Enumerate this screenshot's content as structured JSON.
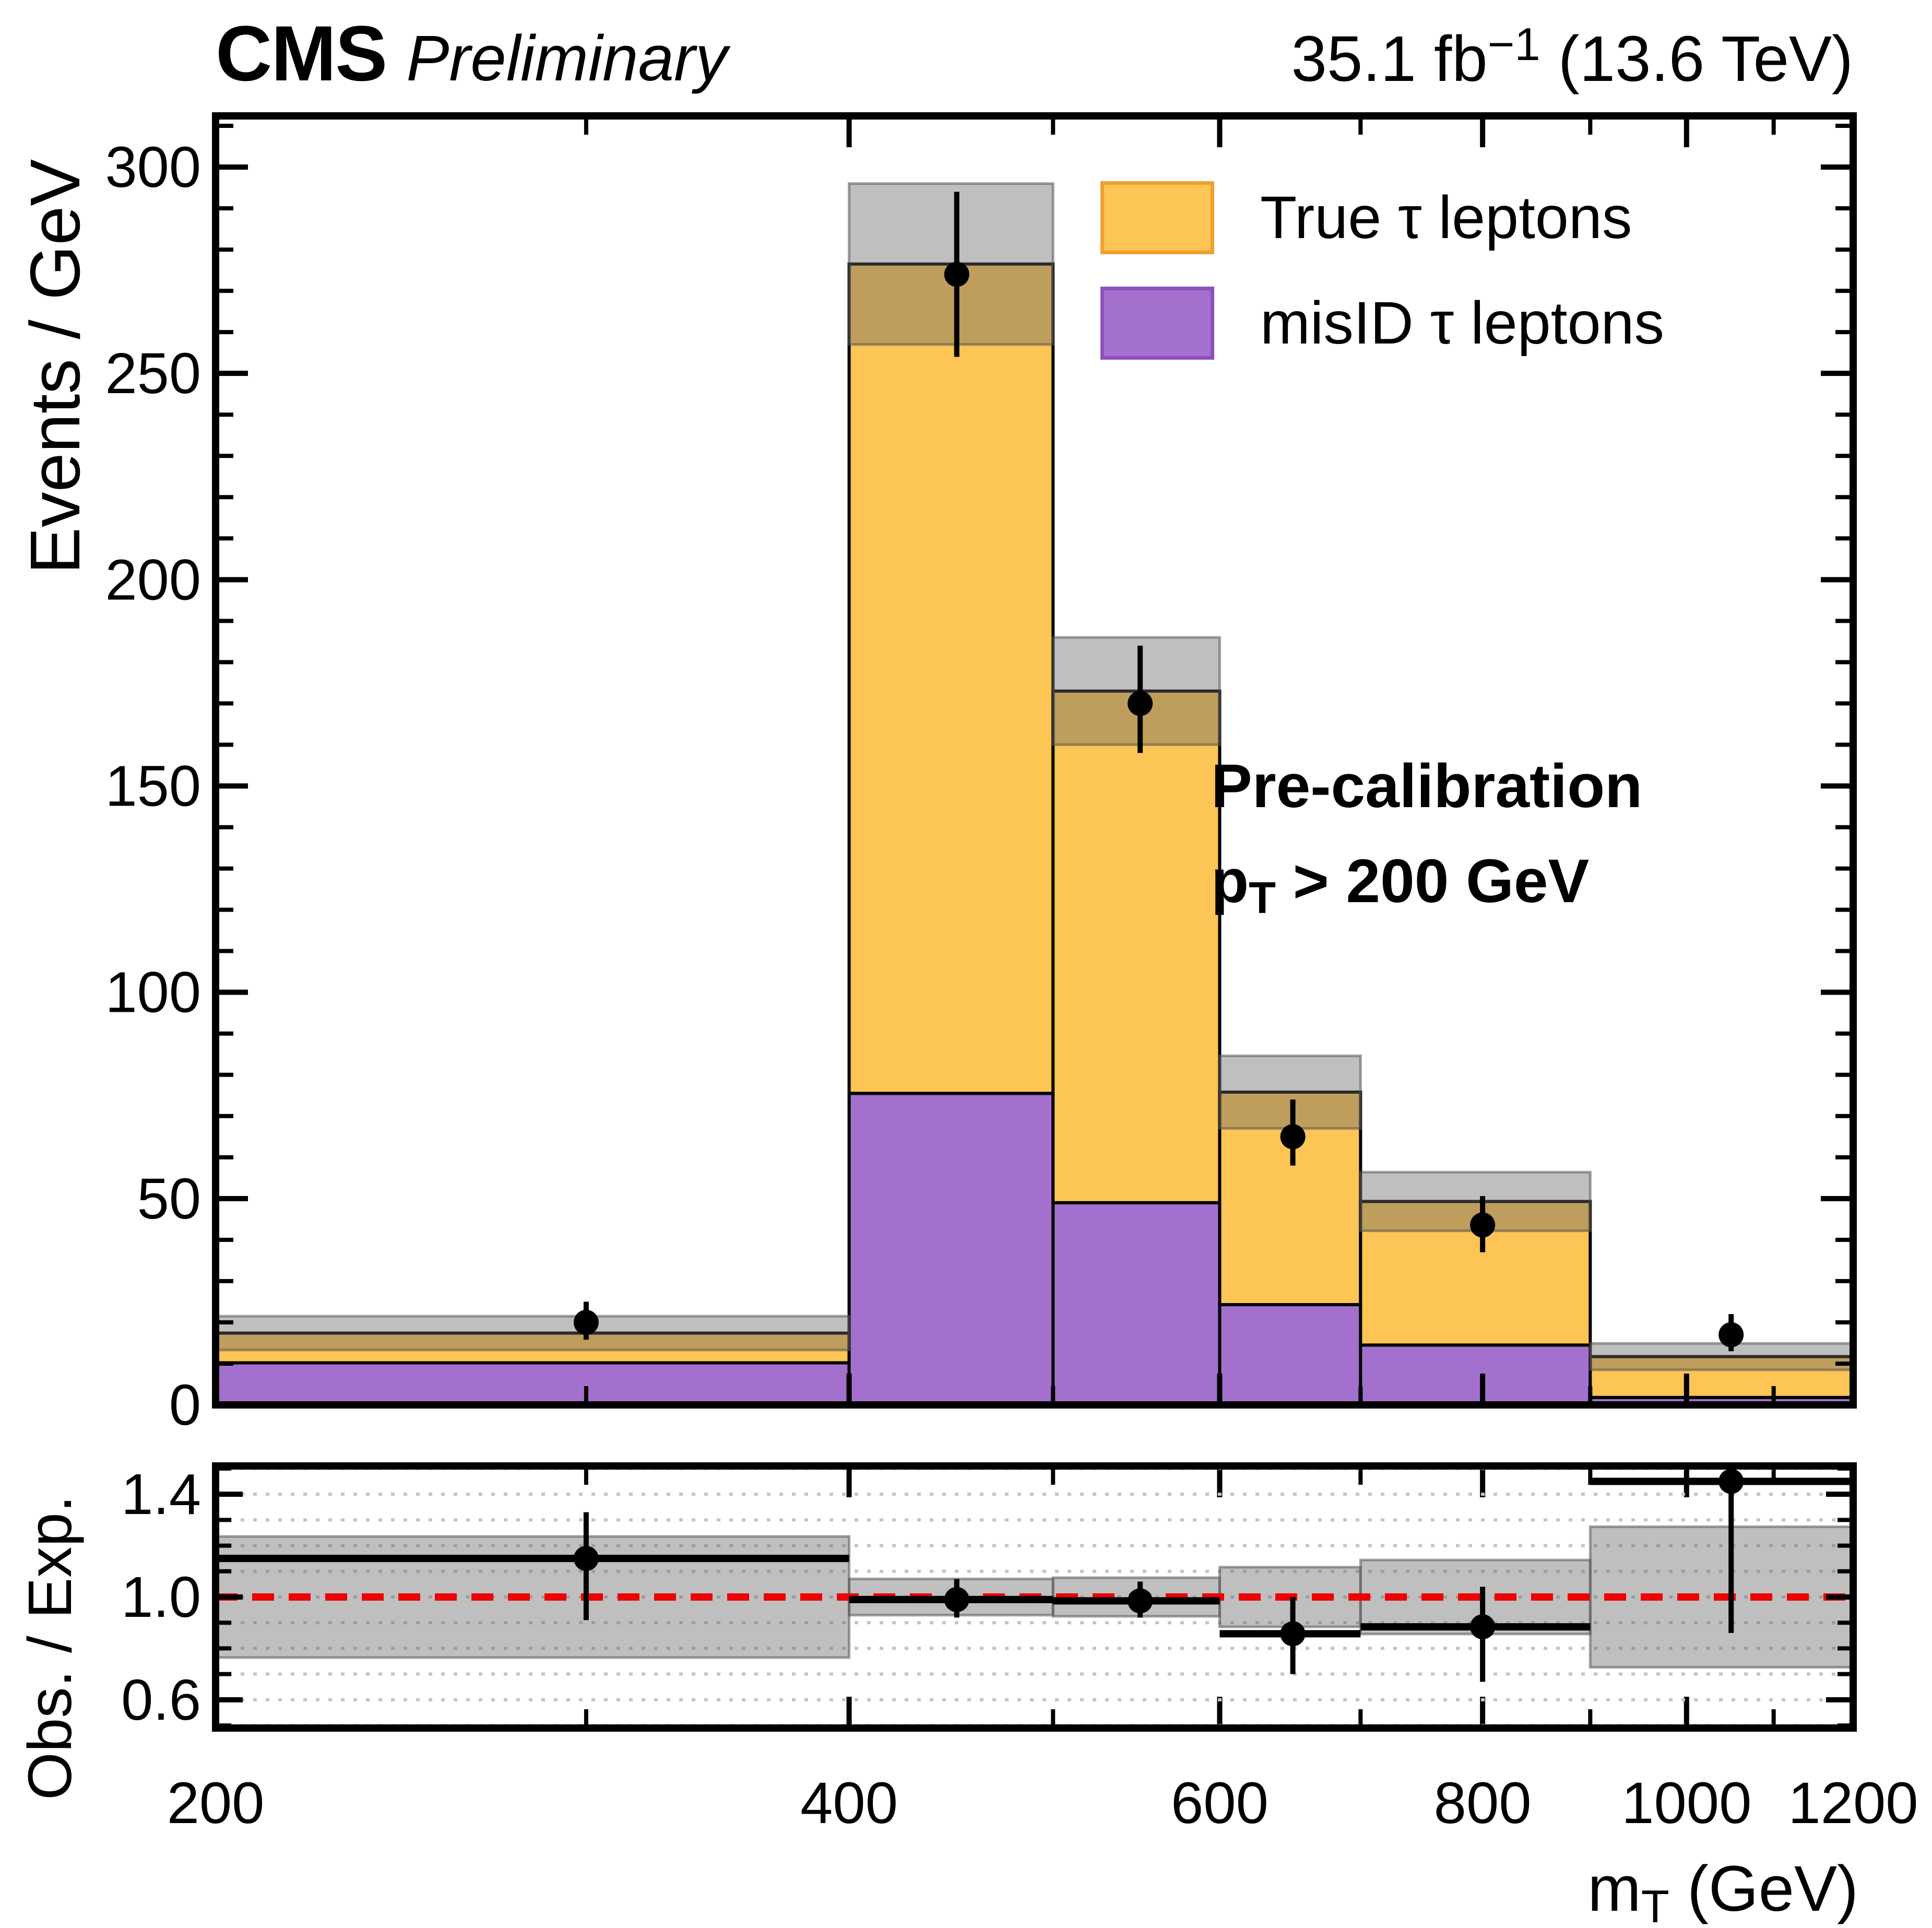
{
  "header": {
    "experiment": "CMS",
    "preliminary": "Preliminary",
    "lumi_prefix": "35.1 fb",
    "lumi_sup": "−1",
    "energy_suffix": " (13.6 TeV)"
  },
  "chart_data": {
    "type": "bar",
    "subtype": "stacked-histogram-with-ratio",
    "x_axis": {
      "label_main": "m",
      "label_sub": "T",
      "label_suffix": " (GeV)",
      "scale": "log",
      "range": [
        200,
        1200
      ],
      "major_ticks": [
        200,
        400,
        600,
        800,
        1000,
        1200
      ],
      "minor_ticks": [
        300,
        500,
        700,
        900,
        1100
      ]
    },
    "y_main": {
      "label": "Events / GeV",
      "range": [
        0,
        312.4
      ],
      "major_ticks": [
        0,
        50,
        100,
        150,
        200,
        250,
        300
      ],
      "minor_step": 10,
      "grid": false
    },
    "y_ratio": {
      "label": "Obs. / Exp.",
      "range": [
        0.49,
        1.51
      ],
      "labeled_ticks": [
        0.6,
        1.0,
        1.4
      ],
      "grid_step": 0.1,
      "reference_line": 1.0
    },
    "legend": [
      {
        "label": "True τ leptons",
        "fill": "#FDC456",
        "stroke": "#F0A030"
      },
      {
        "label": "misID τ leptons",
        "fill": "#A370CE",
        "stroke": "#8E4FC0"
      }
    ],
    "annotations": {
      "line1": "Pre-calibration",
      "line2_main": "p",
      "line2_sub": "T",
      "line2_rest": " > 200 GeV"
    },
    "bin_edges": [
      200,
      400,
      500,
      600,
      700,
      900,
      1200
    ],
    "series": [
      {
        "name": "misID τ leptons",
        "values": [
          10.2,
          75.5,
          49.0,
          24.3,
          14.5,
          1.8
        ]
      },
      {
        "name": "True τ leptons",
        "values": [
          7.2,
          201.0,
          124.0,
          51.5,
          34.8,
          9.9
        ]
      }
    ],
    "totals": [
      17.4,
      276.5,
      173.0,
      75.8,
      49.3,
      11.7
    ],
    "uncertainty": [
      4.1,
      19.5,
      13.0,
      8.8,
      7.1,
      3.2
    ],
    "observed": {
      "x": [
        300,
        450,
        550,
        650,
        800,
        1050
      ],
      "y": [
        20,
        274,
        170,
        65,
        43.6,
        17
      ],
      "err_low": [
        15.8,
        254,
        158,
        58,
        37,
        13
      ],
      "err_high": [
        25,
        294,
        184,
        74,
        50.6,
        22
      ]
    },
    "ratio": {
      "y": [
        1.15,
        0.99,
        0.985,
        0.857,
        0.884,
        1.45
      ],
      "err_low": [
        0.91,
        0.92,
        0.92,
        0.7,
        0.67,
        0.86
      ],
      "err_high": [
        1.33,
        1.07,
        1.06,
        1.0,
        1.04,
        1.88
      ]
    },
    "colors": {
      "true_tau": "#FDC456",
      "misid": "#A370CE",
      "band_fill": "rgba(102,102,102,0.42)",
      "band_edge": "rgba(85,85,85,0.55)",
      "reference": "#EE0000",
      "marker": "#000000",
      "grid_dots": "#c4c4c4",
      "frame": "#000000"
    }
  }
}
